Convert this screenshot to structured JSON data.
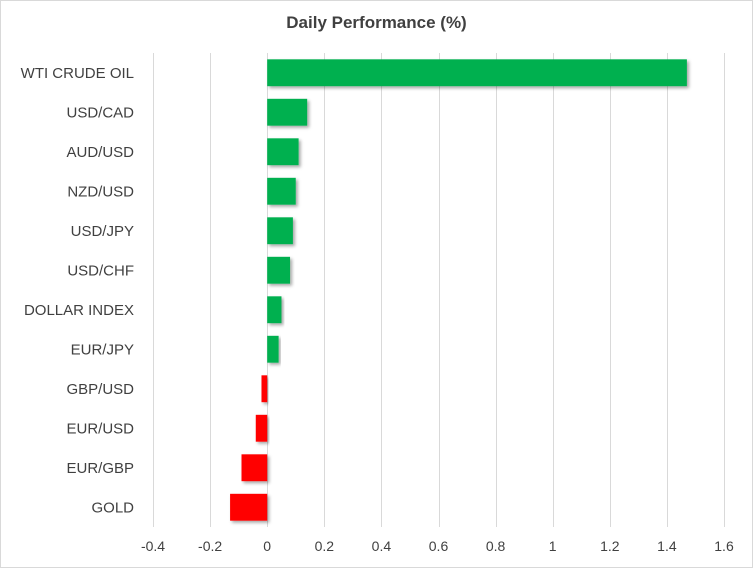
{
  "chart_data": {
    "type": "bar",
    "orientation": "horizontal",
    "title": "Daily Performance (%)",
    "xlabel": "",
    "ylabel": "",
    "categories": [
      "WTI CRUDE OIL",
      "USD/CAD",
      "AUD/USD",
      "NZD/USD",
      "USD/JPY",
      "USD/CHF",
      "DOLLAR INDEX",
      "EUR/JPY",
      "GBP/USD",
      "EUR/USD",
      "EUR/GBP",
      "GOLD"
    ],
    "values": [
      1.47,
      0.14,
      0.11,
      0.1,
      0.09,
      0.08,
      0.05,
      0.04,
      -0.02,
      -0.04,
      -0.09,
      -0.13
    ],
    "xlim": [
      -0.4,
      1.6
    ],
    "xticks": [
      -0.4,
      -0.2,
      0,
      0.2,
      0.4,
      0.6,
      0.8,
      1,
      1.2,
      1.4,
      1.6
    ],
    "xtick_labels": [
      "-0.4",
      "-0.2",
      "0",
      "0.2",
      "0.4",
      "0.6",
      "0.8",
      "1",
      "1.2",
      "1.4",
      "1.6"
    ],
    "grid": "vertical",
    "legend": "none",
    "colors": {
      "positive": "#00b050",
      "negative": "#ff0000",
      "grid": "#d9d9d9",
      "text": "#404040"
    }
  }
}
